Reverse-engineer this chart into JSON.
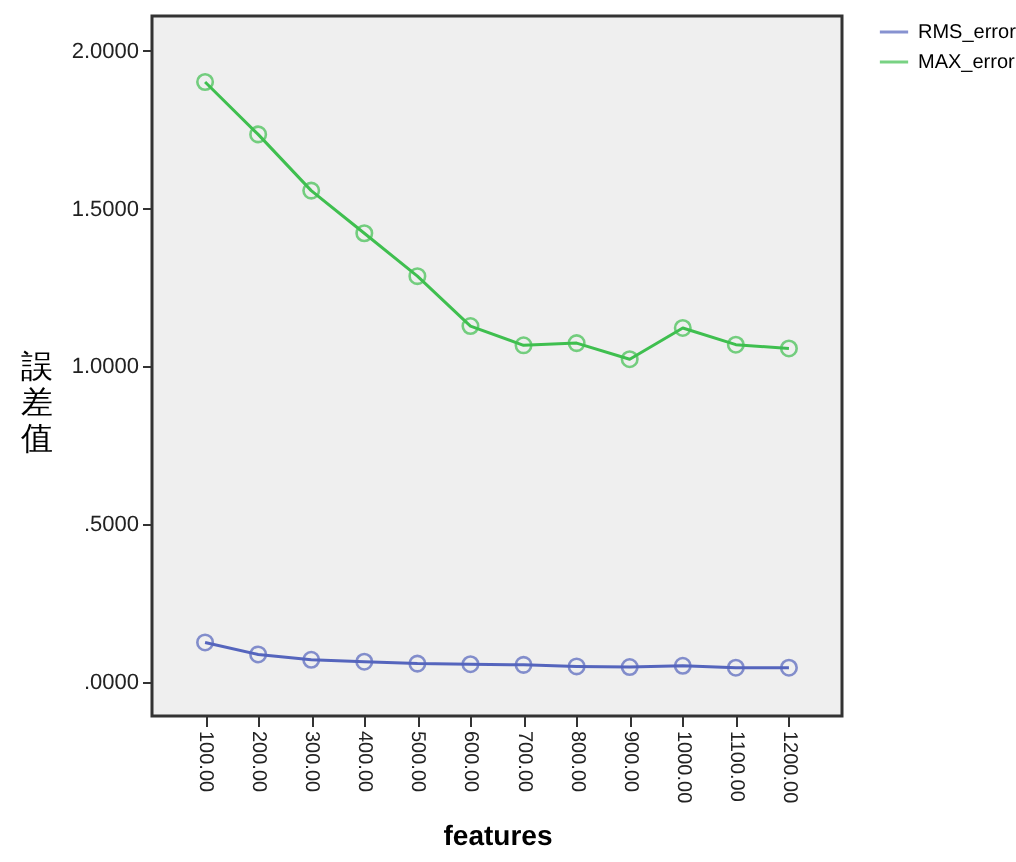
{
  "chart_data": {
    "type": "line",
    "xlabel": "features",
    "ylabel": "誤差值",
    "categories": [
      "100.00",
      "200.00",
      "300.00",
      "400.00",
      "500.00",
      "600.00",
      "700.00",
      "800.00",
      "900.00",
      "1000.00",
      "1100.00",
      "1200.00"
    ],
    "series": [
      {
        "name": "RMS_error",
        "color": "#5565bd",
        "values": [
          0.126,
          0.088,
          0.071,
          0.065,
          0.059,
          0.057,
          0.055,
          0.05,
          0.048,
          0.052,
          0.046,
          0.046
        ]
      },
      {
        "name": "MAX_error",
        "color": "#3fbf4f",
        "values": [
          1.901,
          1.735,
          1.557,
          1.422,
          1.286,
          1.128,
          1.067,
          1.074,
          1.023,
          1.122,
          1.069,
          1.057
        ]
      }
    ],
    "ylim": [
      -0.107,
      2.11
    ],
    "yticks": [
      {
        "value": 0,
        "label": ".0000"
      },
      {
        "value": 0.5,
        "label": ".5000"
      },
      {
        "value": 1,
        "label": "1.0000"
      },
      {
        "value": 1.5,
        "label": "1.5000"
      },
      {
        "value": 2,
        "label": "2.0000"
      }
    ],
    "grid": false,
    "legend": "top right",
    "marker": "circle",
    "line_style": "solid"
  }
}
